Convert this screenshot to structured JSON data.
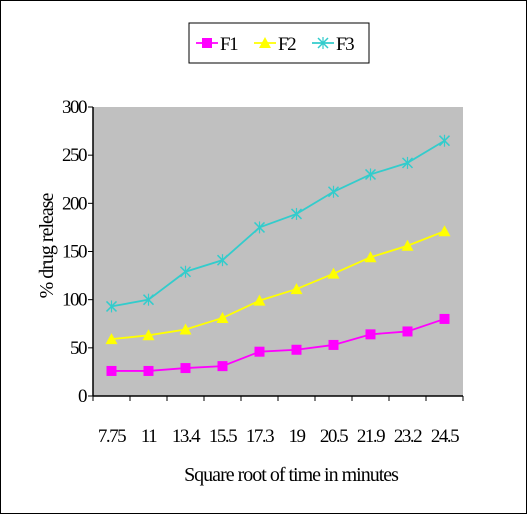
{
  "chart_data": {
    "type": "line",
    "xlabel": "Square root of time in minutes",
    "ylabel": "% drug release",
    "categories": [
      "7.75",
      "11",
      "13.4",
      "15.5",
      "17.3",
      "19",
      "20.5",
      "21.9",
      "23.2",
      "24.5"
    ],
    "ylim": [
      0,
      300
    ],
    "yticks": [
      "0",
      "50",
      "100",
      "150",
      "200",
      "250",
      "300"
    ],
    "grid": false,
    "legend": "top",
    "plot_background": "#c0c0c0",
    "series": [
      {
        "name": "F1",
        "color": "#ff00ff",
        "marker": "square",
        "values": [
          26,
          26,
          29,
          31,
          46,
          48,
          53,
          64,
          67,
          80
        ]
      },
      {
        "name": "F2",
        "color": "#ffff00",
        "marker": "triangle",
        "values": [
          59,
          63,
          69,
          81,
          99,
          111,
          127,
          144,
          156,
          171
        ]
      },
      {
        "name": "F3",
        "color": "#33cccc",
        "marker": "x",
        "values": [
          93,
          100,
          129,
          141,
          175,
          189,
          212,
          230,
          242,
          265
        ]
      }
    ]
  }
}
